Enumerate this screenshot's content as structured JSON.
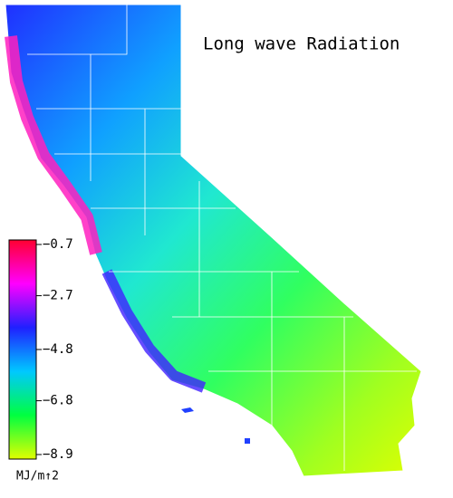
{
  "title": "Long wave Radiation",
  "colorbar": {
    "range": [
      -8.9,
      -0.7
    ],
    "ticks": [
      {
        "value": -0.7,
        "label": "−0.7"
      },
      {
        "value": -2.7,
        "label": "−2.7"
      },
      {
        "value": -4.8,
        "label": "−4.8"
      },
      {
        "value": -6.8,
        "label": "−6.8"
      },
      {
        "value": -8.9,
        "label": "−8.9"
      }
    ],
    "colors": [
      "#ff0030",
      "#ff00ff",
      "#2020ff",
      "#00c8ff",
      "#00ff40",
      "#e0ff00"
    ],
    "unit": "MJ/m↑2"
  }
}
